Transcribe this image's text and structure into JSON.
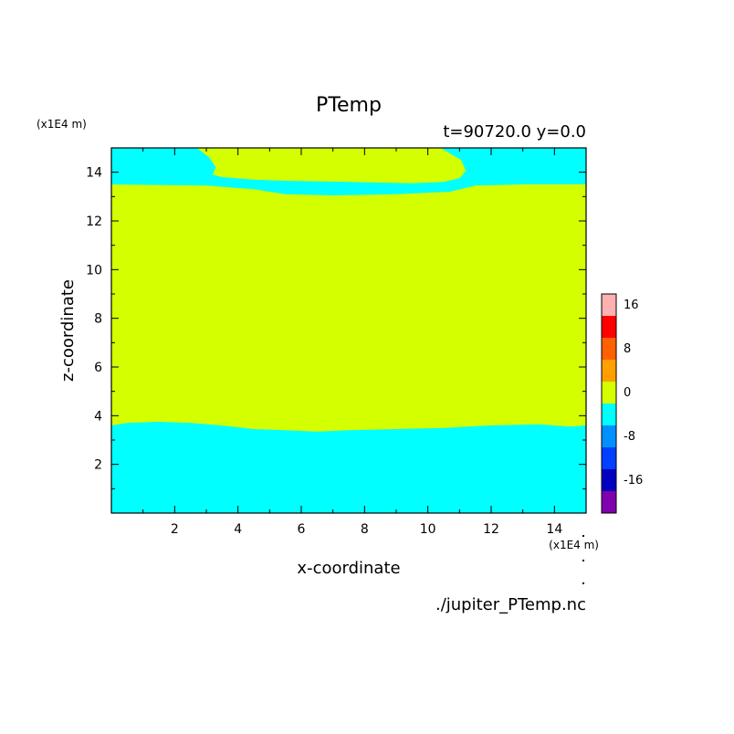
{
  "chart_data": {
    "type": "heatmap",
    "title": "PTemp",
    "subtitle": "t=90720.0 y=0.0",
    "xlabel": "x-coordinate",
    "ylabel": "z-coordinate",
    "x_unit": "(x1E4 m)",
    "y_unit": "(x1E4 m)",
    "source_file": "./jupiter_PTemp.nc",
    "xlim": [
      0,
      15
    ],
    "ylim": [
      0,
      15
    ],
    "x_ticks": [
      "2",
      "4",
      "6",
      "8",
      "10",
      "12",
      "14"
    ],
    "y_ticks": [
      "2",
      "4",
      "6",
      "8",
      "10",
      "12",
      "14"
    ],
    "colorbar": {
      "levels": [
        {
          "min": -20,
          "max": -16,
          "color": "#8000b0"
        },
        {
          "min": -16,
          "max": -12,
          "color": "#0000c0"
        },
        {
          "min": -12,
          "max": -8,
          "color": "#0040ff"
        },
        {
          "min": -8,
          "max": -4,
          "color": "#0090ff"
        },
        {
          "min": -4,
          "max": 0,
          "color": "#00ffff"
        },
        {
          "min": 0,
          "max": 4,
          "color": "#d4ff00"
        },
        {
          "min": 4,
          "max": 8,
          "color": "#ffa000"
        },
        {
          "min": 8,
          "max": 12,
          "color": "#ff6000"
        },
        {
          "min": 12,
          "max": 16,
          "color": "#ff0000"
        },
        {
          "min": 16,
          "max": 20,
          "color": "#ffb0b0"
        }
      ],
      "tick_labels": [
        "16",
        "8",
        "0",
        "-8",
        "-16"
      ],
      "tick_values": [
        16,
        8,
        0,
        -8,
        -16
      ],
      "range": [
        -20,
        20
      ]
    },
    "regions": [
      {
        "name": "lower negative layer",
        "level": "-4 to 0",
        "color": "#00ffff",
        "z_top_approx": 3.5
      },
      {
        "name": "middle positive layer",
        "level": "0 to 4",
        "color": "#d4ff00",
        "z_range_approx": [
          3.5,
          13.4
        ]
      },
      {
        "name": "upper negative layer",
        "level": "-4 to 0",
        "color": "#00ffff",
        "z_bottom_approx": 13.4
      },
      {
        "name": "upper positive pocket",
        "level": "0 to 4",
        "color": "#d4ff00",
        "x_range_approx": [
          2.8,
          11.2
        ],
        "z_range_approx": [
          13.7,
          15
        ]
      }
    ],
    "lower_boundary": [
      [
        0,
        3.6
      ],
      [
        0.5,
        3.7
      ],
      [
        1.5,
        3.75
      ],
      [
        2.5,
        3.7
      ],
      [
        3.5,
        3.6
      ],
      [
        4.5,
        3.45
      ],
      [
        5.5,
        3.4
      ],
      [
        6.5,
        3.35
      ],
      [
        7.5,
        3.4
      ],
      [
        9,
        3.45
      ],
      [
        10.5,
        3.5
      ],
      [
        12,
        3.6
      ],
      [
        13.5,
        3.65
      ],
      [
        14.5,
        3.55
      ],
      [
        15,
        3.6
      ]
    ],
    "upper_boundary": [
      [
        0,
        13.5
      ],
      [
        3,
        13.45
      ],
      [
        4.5,
        13.3
      ],
      [
        5.5,
        13.1
      ],
      [
        7,
        13.05
      ],
      [
        9,
        13.1
      ],
      [
        10.7,
        13.2
      ],
      [
        11.5,
        13.45
      ],
      [
        13,
        13.5
      ],
      [
        15,
        13.5
      ]
    ],
    "pocket_boundary": [
      [
        2.7,
        15
      ],
      [
        3.1,
        14.6
      ],
      [
        3.3,
        14.2
      ],
      [
        3.2,
        13.9
      ],
      [
        3.5,
        13.8
      ],
      [
        4.5,
        13.7
      ],
      [
        5.5,
        13.65
      ],
      [
        7.5,
        13.6
      ],
      [
        9.5,
        13.55
      ],
      [
        10.5,
        13.6
      ],
      [
        11,
        13.75
      ],
      [
        11.2,
        14.05
      ],
      [
        11.05,
        14.5
      ],
      [
        10.4,
        15
      ]
    ]
  }
}
